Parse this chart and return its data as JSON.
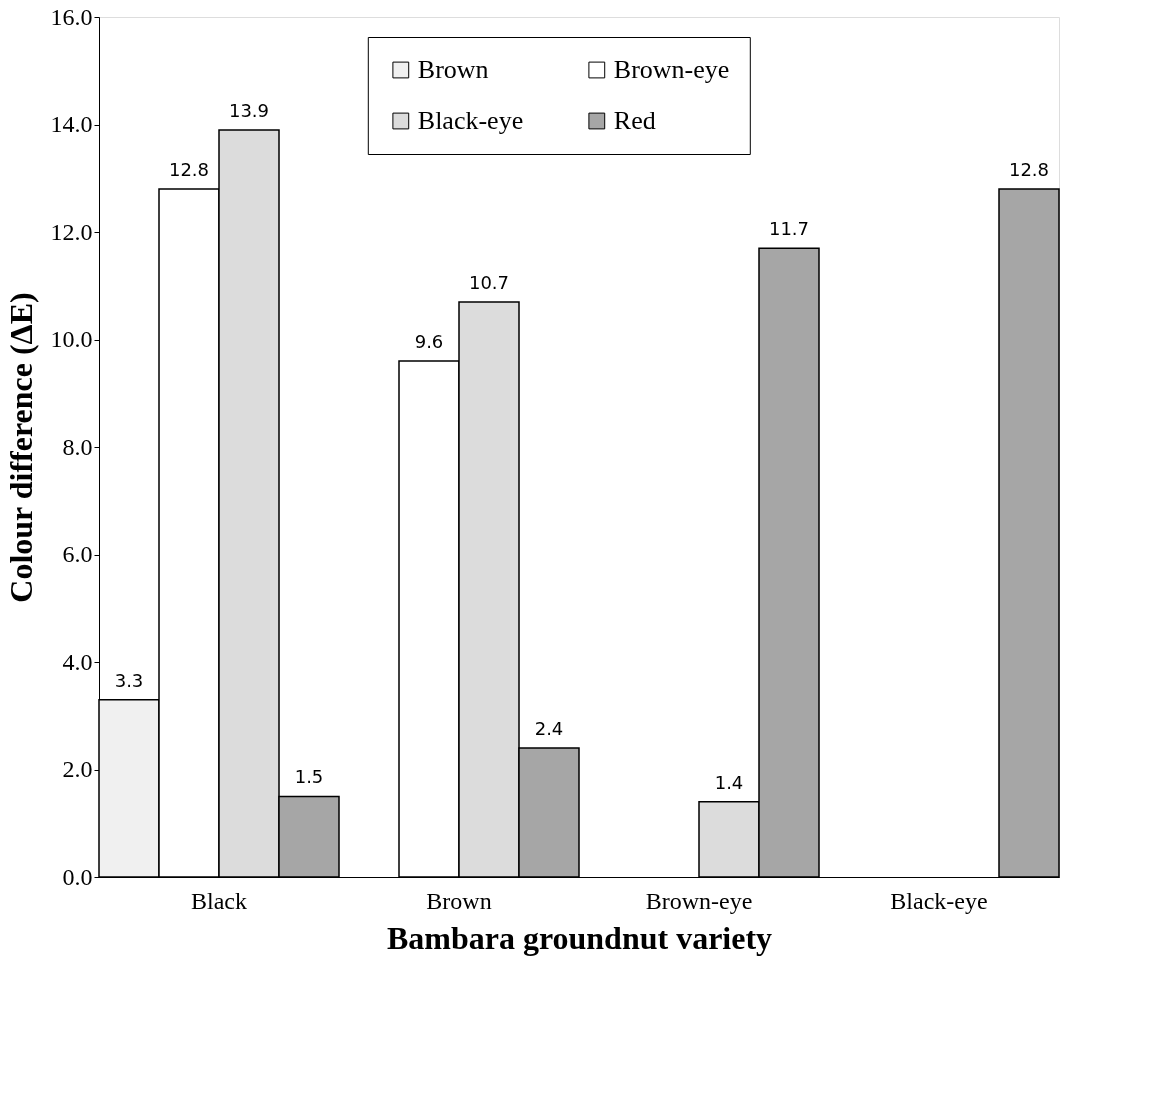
{
  "chart_data": {
    "type": "bar",
    "xlabel": "Bambara groundnut variety",
    "ylabel": "Colour difference (ΔE)",
    "categories": [
      "Black",
      "Brown",
      "Brown-eye",
      "Black-eye"
    ],
    "series": [
      {
        "name": "Brown",
        "color": "#f0f0f0",
        "values": [
          3.3,
          null,
          null,
          null
        ]
      },
      {
        "name": "Brown-eye",
        "color": "#ffffff",
        "values": [
          12.8,
          9.6,
          null,
          null
        ]
      },
      {
        "name": "Black-eye",
        "color": "#dcdcdc",
        "values": [
          13.9,
          10.7,
          1.4,
          null
        ]
      },
      {
        "name": "Red",
        "color": "#a6a6a6",
        "values": [
          1.5,
          2.4,
          11.7,
          12.8
        ]
      }
    ],
    "ylim": [
      0,
      16
    ],
    "yticks": [
      {
        "value": 0,
        "label": "0.0"
      },
      {
        "value": 2,
        "label": "2.0"
      },
      {
        "value": 4,
        "label": "4.0"
      },
      {
        "value": 6,
        "label": "6.0"
      },
      {
        "value": 8,
        "label": "8.0"
      },
      {
        "value": 10,
        "label": "10.0"
      },
      {
        "value": 12,
        "label": "12.0"
      },
      {
        "value": 14,
        "label": "14.0"
      },
      {
        "value": 16,
        "label": "16.0"
      }
    ],
    "data_labels": true,
    "grid": false,
    "legend": "top"
  }
}
